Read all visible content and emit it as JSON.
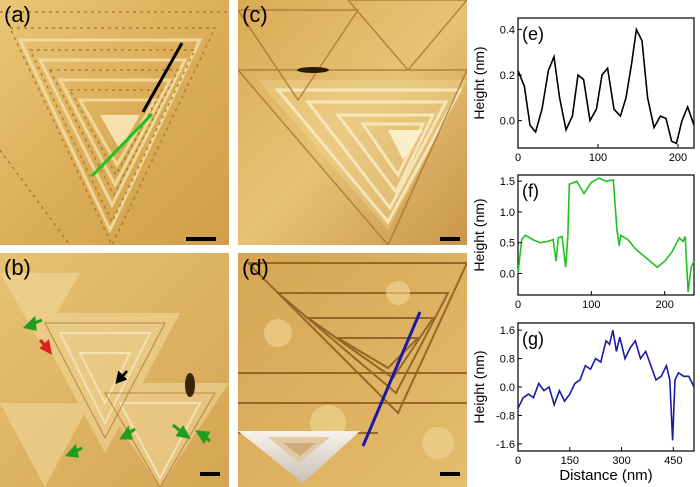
{
  "panels": {
    "a": {
      "label": "(a)"
    },
    "b": {
      "label": "(b)"
    },
    "c": {
      "label": "(c)"
    },
    "d": {
      "label": "(d)"
    }
  },
  "colors": {
    "afm_light": "#f4dc9a",
    "afm_mid": "#d9a94f",
    "afm_dark": "#9b6a24",
    "line_black": "#000000",
    "line_green": "#22c122",
    "line_blue": "#1a1aa8",
    "arrow_green": "#1e9e1e",
    "arrow_red": "#e02020"
  },
  "chart_data": [
    {
      "type": "line",
      "label": "(e)",
      "ylabel": "Height (nm)",
      "xlabel": "",
      "color": "#000000",
      "xlim": [
        0,
        220
      ],
      "ylim": [
        -0.12,
        0.45
      ],
      "xticks": [
        0,
        100,
        200
      ],
      "yticks": [
        0.0,
        0.2,
        0.4
      ],
      "ytick_labels": [
        "0.0",
        "0.2",
        "0.4"
      ],
      "x": [
        0,
        8,
        15,
        22,
        30,
        38,
        45,
        52,
        60,
        68,
        75,
        82,
        90,
        98,
        105,
        112,
        120,
        128,
        135,
        142,
        148,
        155,
        162,
        170,
        178,
        185,
        192,
        198,
        205,
        212,
        220
      ],
      "y": [
        0.22,
        0.15,
        -0.02,
        -0.05,
        0.05,
        0.22,
        0.28,
        0.1,
        -0.04,
        0.02,
        0.2,
        0.18,
        0.0,
        0.05,
        0.2,
        0.23,
        0.05,
        0.02,
        0.1,
        0.25,
        0.4,
        0.35,
        0.1,
        -0.03,
        0.02,
        0.01,
        -0.09,
        -0.1,
        0.0,
        0.06,
        -0.02
      ]
    },
    {
      "type": "line",
      "label": "(f)",
      "ylabel": "Height (nm)",
      "xlabel": "",
      "color": "#22c122",
      "xlim": [
        0,
        240
      ],
      "ylim": [
        -0.35,
        1.6
      ],
      "xticks": [
        0,
        100,
        200
      ],
      "yticks": [
        0.0,
        0.5,
        1.0,
        1.5
      ],
      "ytick_labels": [
        "0.0",
        "0.5",
        "1.0",
        "1.5"
      ],
      "x": [
        0,
        5,
        10,
        20,
        30,
        40,
        48,
        52,
        55,
        60,
        65,
        68,
        70,
        80,
        90,
        100,
        110,
        120,
        130,
        135,
        138,
        140,
        150,
        160,
        170,
        180,
        190,
        200,
        210,
        220,
        225,
        228,
        232,
        236,
        240
      ],
      "y": [
        0.0,
        0.55,
        0.62,
        0.55,
        0.5,
        0.52,
        0.55,
        0.2,
        0.58,
        0.6,
        0.1,
        0.62,
        1.45,
        1.5,
        1.3,
        1.48,
        1.55,
        1.5,
        1.52,
        0.7,
        0.45,
        0.62,
        0.55,
        0.4,
        0.3,
        0.2,
        0.1,
        0.2,
        0.35,
        0.58,
        0.52,
        0.6,
        -0.3,
        0.1,
        0.2
      ]
    },
    {
      "type": "line",
      "label": "(g)",
      "ylabel": "Height (nm)",
      "xlabel": "Distance (nm)",
      "color": "#1a1aa8",
      "xlim": [
        0,
        510
      ],
      "ylim": [
        -1.8,
        1.8
      ],
      "xticks": [
        0,
        150,
        300,
        450
      ],
      "yticks": [
        -1.6,
        -0.8,
        0.0,
        0.8,
        1.6
      ],
      "ytick_labels": [
        "-1.6",
        "-0.8",
        "0.0",
        "0.8",
        "1.6"
      ],
      "x": [
        0,
        15,
        30,
        45,
        60,
        75,
        90,
        105,
        120,
        135,
        150,
        165,
        180,
        195,
        210,
        225,
        240,
        255,
        265,
        275,
        285,
        295,
        310,
        325,
        340,
        355,
        370,
        385,
        400,
        415,
        430,
        440,
        448,
        455,
        465,
        480,
        495,
        510
      ],
      "y": [
        -0.6,
        -0.3,
        -0.2,
        -0.3,
        0.1,
        -0.1,
        0.0,
        -0.5,
        -0.1,
        -0.4,
        -0.2,
        0.1,
        0.2,
        0.6,
        0.5,
        0.8,
        0.7,
        1.3,
        1.2,
        1.6,
        1.0,
        1.4,
        0.8,
        1.1,
        1.3,
        0.8,
        1.0,
        0.6,
        0.2,
        0.3,
        0.6,
        0.2,
        -1.5,
        0.2,
        0.4,
        0.3,
        0.3,
        0.0
      ]
    }
  ]
}
